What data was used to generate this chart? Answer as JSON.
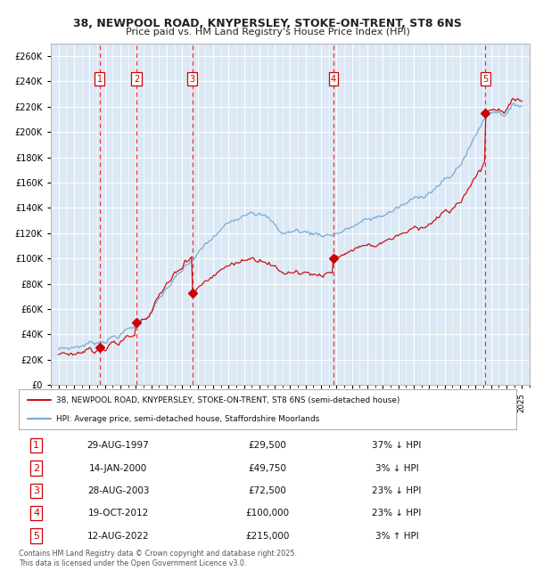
{
  "title_line1": "38, NEWPOOL ROAD, KNYPERSLEY, STOKE-ON-TRENT, ST8 6NS",
  "title_line2": "Price paid vs. HM Land Registry's House Price Index (HPI)",
  "background_color": "#dce9f5",
  "grid_color": "#ffffff",
  "sale_dates_dec": [
    1997.66,
    2000.04,
    2003.66,
    2012.8,
    2022.62
  ],
  "sale_prices": [
    29500,
    49750,
    72500,
    100000,
    215000
  ],
  "sale_labels": [
    "1",
    "2",
    "3",
    "4",
    "5"
  ],
  "vline_color": "#ee3333",
  "sale_marker_color": "#cc0000",
  "hpi_line_color": "#7aaad0",
  "price_line_color": "#cc1111",
  "ylim_min": 0,
  "ylim_max": 270000,
  "xlim_min": 1994.5,
  "xlim_max": 2025.5,
  "legend_label_red": "38, NEWPOOL ROAD, KNYPERSLEY, STOKE-ON-TRENT, ST8 6NS (semi-detached house)",
  "legend_label_blue": "HPI: Average price, semi-detached house, Staffordshire Moorlands",
  "table_entries": [
    {
      "num": "1",
      "date": "29-AUG-1997",
      "price": "£29,500",
      "pct": "37% ↓ HPI"
    },
    {
      "num": "2",
      "date": "14-JAN-2000",
      "price": "£49,750",
      "pct": "3% ↓ HPI"
    },
    {
      "num": "3",
      "date": "28-AUG-2003",
      "price": "£72,500",
      "pct": "23% ↓ HPI"
    },
    {
      "num": "4",
      "date": "19-OCT-2012",
      "price": "£100,000",
      "pct": "23% ↓ HPI"
    },
    {
      "num": "5",
      "date": "12-AUG-2022",
      "price": "£215,000",
      "pct": "3% ↑ HPI"
    }
  ],
  "footnote": "Contains HM Land Registry data © Crown copyright and database right 2025.\nThis data is licensed under the Open Government Licence v3.0."
}
